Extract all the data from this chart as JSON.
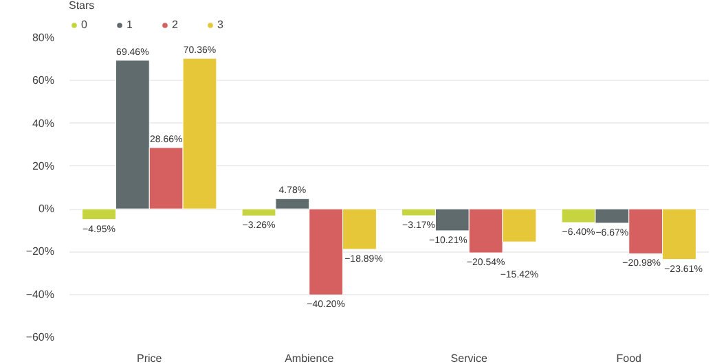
{
  "chart_data": {
    "type": "bar",
    "legend_title": "Stars",
    "categories": [
      "Price",
      "Ambience",
      "Service",
      "Food"
    ],
    "series": [
      {
        "name": "0",
        "color": "#c5d43f",
        "values": [
          -4.95,
          -3.26,
          -3.17,
          -6.4
        ],
        "value_labels": [
          "−4.95%",
          "−3.26%",
          "−3.17%",
          "−6.40%"
        ]
      },
      {
        "name": "1",
        "color": "#5f6b6d",
        "values": [
          69.46,
          4.78,
          -10.21,
          -6.67
        ],
        "value_labels": [
          "69.46%",
          "4.78%",
          "−10.21%",
          "−6.67%"
        ]
      },
      {
        "name": "2",
        "color": "#d65f5f",
        "values": [
          28.66,
          -40.2,
          -20.54,
          -20.98
        ],
        "value_labels": [
          "28.66%",
          "−40.20%",
          "−20.54%",
          "−20.98%"
        ]
      },
      {
        "name": "3",
        "color": "#e6c73a",
        "values": [
          70.36,
          -18.89,
          -15.42,
          -23.61
        ],
        "value_labels": [
          "70.36%",
          "−18.89%",
          "−15.42%",
          "−23.61%"
        ]
      }
    ],
    "ylim": [
      -60,
      80
    ],
    "yticks": [
      {
        "value": -60,
        "label": "−60%"
      },
      {
        "value": -40,
        "label": "−40%"
      },
      {
        "value": -20,
        "label": "−20%"
      },
      {
        "value": 0,
        "label": "0%"
      },
      {
        "value": 20,
        "label": "20%"
      },
      {
        "value": 40,
        "label": "40%"
      },
      {
        "value": 60,
        "label": "60%"
      },
      {
        "value": 80,
        "label": "80%"
      }
    ],
    "grid": "y",
    "legend": "top left"
  }
}
